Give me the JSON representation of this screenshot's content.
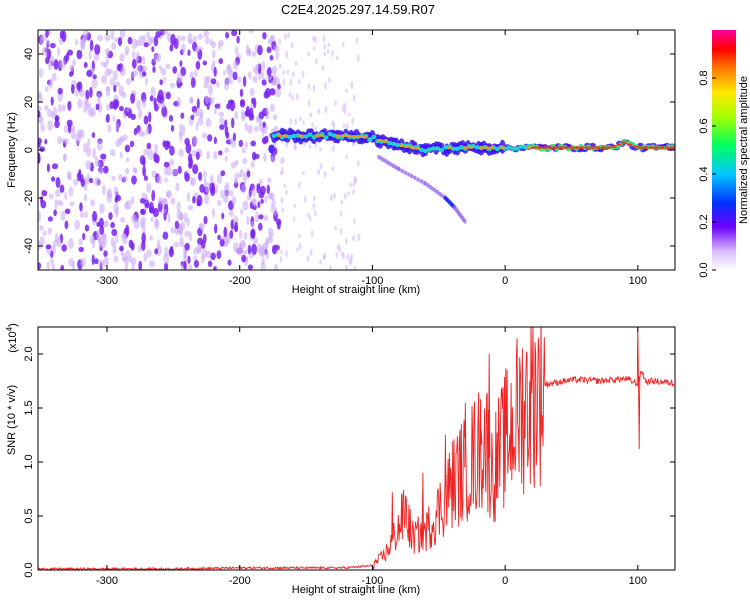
{
  "title": "C2E4.2025.297.14.59.R07",
  "colors": {
    "snr_line": "#ee2222",
    "dots": "#7a22ee",
    "dots_faint": "#c9a8f5",
    "background": "#ffffff"
  },
  "chart_data": [
    {
      "type": "heatmap",
      "name": "spectrogram",
      "xlabel": "Height of straight line (km)",
      "ylabel": "Frequency (Hz)",
      "xlim": [
        -352,
        128
      ],
      "ylim": [
        -50,
        50
      ],
      "xticks": [
        -300,
        -200,
        -100,
        0,
        100
      ],
      "xtick_labels": [
        "-300",
        "-200",
        "-100",
        "0",
        "100"
      ],
      "yticks": [
        -40,
        -20,
        0,
        20,
        40
      ],
      "ytick_labels": [
        "-40",
        "-20",
        "0",
        "20",
        "40"
      ],
      "noise_region_x": [
        -352,
        -170
      ],
      "signal_band": {
        "x": [
          -175,
          -140,
          -120,
          -100,
          -80,
          -60,
          -40,
          -20,
          0,
          20,
          50,
          80,
          90,
          100,
          128
        ],
        "freq": [
          6,
          6,
          6,
          5,
          2,
          0,
          1,
          1,
          1,
          1,
          1,
          1,
          3,
          1,
          1
        ]
      },
      "chirp_tail": {
        "x": [
          -95,
          -80,
          -60,
          -45,
          -38,
          -30
        ],
        "freq": [
          -3,
          -8,
          -14,
          -20,
          -24,
          -30
        ]
      },
      "colorbar": {
        "label": "Normalized spectral amplitude",
        "range": [
          0.0,
          1.0
        ],
        "ticks": [
          0.0,
          0.2,
          0.4,
          0.6,
          0.8
        ],
        "tick_labels": [
          "0.0",
          "0.2",
          "0.4",
          "0.6",
          "0.8"
        ]
      }
    },
    {
      "type": "line",
      "name": "snr",
      "xlabel": "Height of straight line (km)",
      "ylabel": "SNR (10 * v/v)",
      "multiplier_label": "(x10",
      "multiplier_exp": "4",
      "multiplier_close": ")",
      "xlim": [
        -352,
        128
      ],
      "ylim": [
        0,
        2.25
      ],
      "xticks": [
        -300,
        -200,
        -100,
        0,
        100
      ],
      "xtick_labels": [
        "-300",
        "-200",
        "-100",
        "0",
        "100"
      ],
      "yticks": [
        0.0,
        0.5,
        1.0,
        1.5,
        2.0
      ],
      "ytick_labels": [
        "0.0",
        "0.5",
        "1.0",
        "1.5",
        "2.0"
      ],
      "series": [
        {
          "name": "SNR",
          "x": [
            -352,
            -300,
            -250,
            -200,
            -150,
            -120,
            -100,
            -90,
            -80,
            -75,
            -70,
            -60,
            -50,
            -40,
            -30,
            -20,
            -15,
            -10,
            -5,
            0,
            10,
            20,
            30,
            40,
            50,
            60,
            70,
            80,
            90,
            95,
            100,
            103,
            106,
            110,
            120,
            128
          ],
          "y": [
            0.01,
            0.01,
            0.01,
            0.02,
            0.02,
            0.02,
            0.04,
            0.15,
            0.4,
            0.55,
            0.3,
            0.35,
            0.55,
            0.8,
            0.95,
            1.1,
            1.25,
            0.9,
            1.05,
            1.2,
            1.45,
            1.62,
            1.72,
            1.74,
            1.76,
            1.76,
            1.75,
            1.76,
            1.77,
            1.75,
            1.72,
            1.85,
            1.74,
            1.75,
            1.74,
            1.73
          ]
        }
      ],
      "spikes": [
        {
          "x": -85,
          "y": 0.72
        },
        {
          "x": -62,
          "y": 0.9
        },
        {
          "x": -45,
          "y": 1.25
        },
        {
          "x": -30,
          "y": 1.55
        },
        {
          "x": -18,
          "y": 1.3
        },
        {
          "x": -12,
          "y": 2.0
        },
        {
          "x": 100,
          "y": 2.25
        },
        {
          "x": 101,
          "y": 1.12
        }
      ]
    }
  ]
}
